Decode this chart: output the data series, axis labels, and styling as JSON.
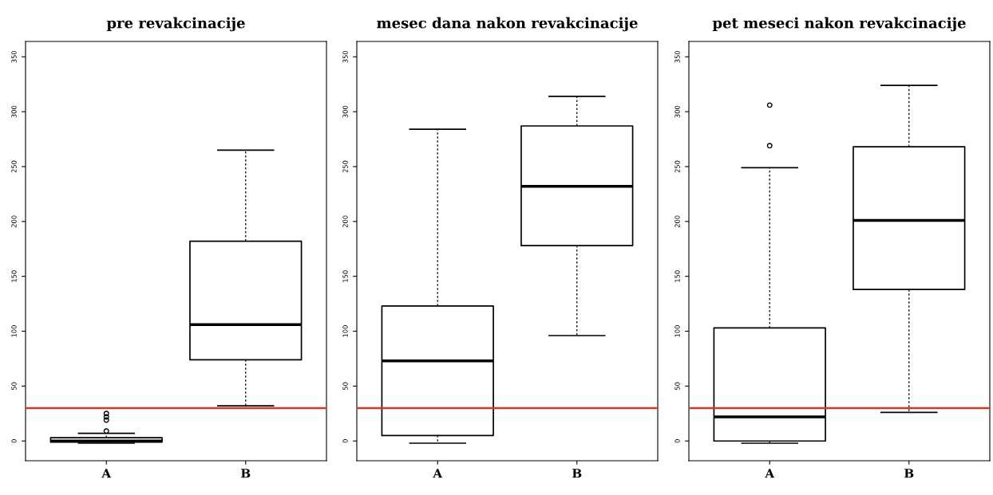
{
  "chart_data": [
    {
      "type": "box",
      "title": "pre revakcinacije",
      "categories": [
        "A",
        "B"
      ],
      "boxes": [
        {
          "low": -2,
          "q1": -1,
          "median": 0,
          "q3": 3,
          "high": 7,
          "outliers": [
            9,
            19,
            22,
            25
          ]
        },
        {
          "low": 32,
          "q1": 74,
          "median": 106,
          "q3": 182,
          "high": 265
        }
      ],
      "ylim": [
        -18,
        364
      ],
      "yticks": [
        0,
        50,
        100,
        150,
        200,
        250,
        300,
        350
      ],
      "ref_lines": [
        {
          "axis": "y",
          "value": 30,
          "color": "#e0302e"
        }
      ]
    },
    {
      "type": "box",
      "title": "mesec dana nakon revakcinacije",
      "categories": [
        "A",
        "B"
      ],
      "boxes": [
        {
          "low": -2,
          "q1": 5,
          "median": 73,
          "q3": 123,
          "high": 284
        },
        {
          "low": 96,
          "q1": 178,
          "median": 232,
          "q3": 287,
          "high": 314
        }
      ],
      "ylim": [
        -18,
        364
      ],
      "yticks": [
        0,
        50,
        100,
        150,
        200,
        250,
        300,
        350
      ],
      "ref_lines": [
        {
          "axis": "y",
          "value": 30,
          "color": "#e0302e"
        }
      ]
    },
    {
      "type": "box",
      "title": "pet meseci nakon revakcinacije",
      "categories": [
        "A",
        "B"
      ],
      "boxes": [
        {
          "low": -2,
          "q1": 0,
          "median": 22,
          "q3": 103,
          "high": 249,
          "outliers": [
            269,
            306
          ]
        },
        {
          "low": 26,
          "q1": 138,
          "median": 201,
          "q3": 268,
          "high": 324
        }
      ],
      "ylim": [
        -18,
        364
      ],
      "yticks": [
        0,
        50,
        100,
        150,
        200,
        250,
        300,
        350
      ],
      "ref_lines": [
        {
          "axis": "y",
          "value": 30,
          "color": "#e0302e"
        }
      ]
    }
  ]
}
